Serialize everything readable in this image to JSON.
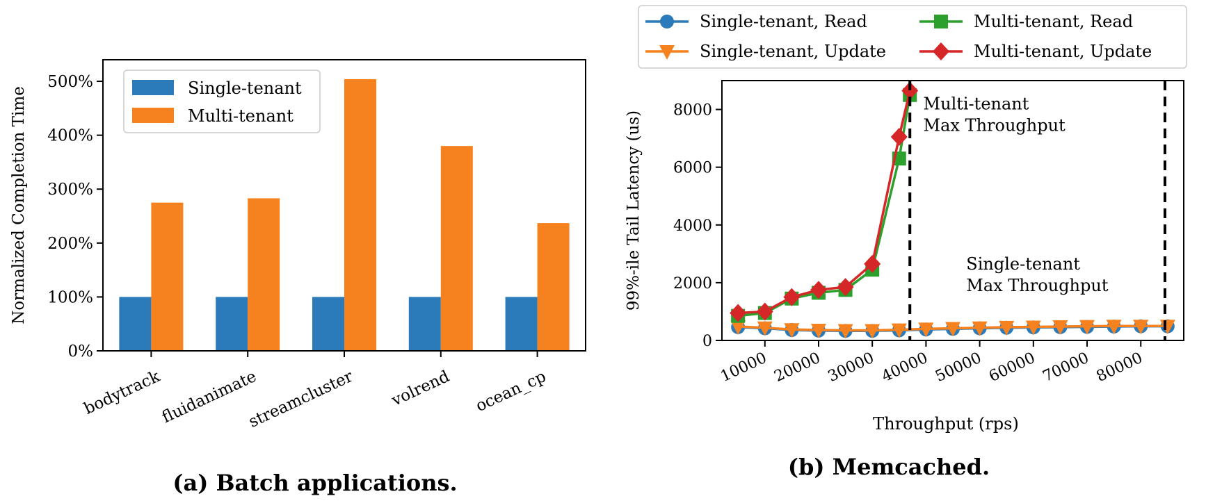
{
  "chart_data": [
    {
      "type": "bar",
      "caption": "(a) Batch applications.",
      "ylabel": "Normalized Completion Time",
      "xlabel": "",
      "categories": [
        "bodytrack",
        "fluidanimate",
        "streamcluster",
        "volrend",
        "ocean_cp"
      ],
      "series": [
        {
          "name": "Single-tenant",
          "values": [
            100,
            100,
            100,
            100,
            100
          ]
        },
        {
          "name": "Multi-tenant",
          "values": [
            275,
            283,
            504,
            380,
            237
          ]
        }
      ],
      "ylim": [
        0,
        540
      ],
      "yticks": [
        0,
        100,
        200,
        300,
        400,
        500
      ],
      "ytick_labels": [
        "0%",
        "100%",
        "200%",
        "300%",
        "400%",
        "500%"
      ],
      "legend_position": "top-left",
      "grid": false,
      "colors": {
        "Single-tenant": "#2b7bba",
        "Multi-tenant": "#f5821f"
      }
    },
    {
      "type": "line",
      "caption": "(b) Memcached.",
      "xlabel": "Throughput (rps)",
      "ylabel": "99%-ile Tail Latency (us)",
      "xlim": [
        2000,
        88000
      ],
      "ylim": [
        0,
        9000
      ],
      "xticks": [
        10000,
        20000,
        30000,
        40000,
        50000,
        60000,
        70000,
        80000
      ],
      "xtick_labels": [
        "10000",
        "20000",
        "30000",
        "40000",
        "50000",
        "60000",
        "70000",
        "80000"
      ],
      "yticks": [
        0,
        2000,
        4000,
        6000,
        8000
      ],
      "ytick_labels": [
        "0",
        "2000",
        "4000",
        "6000",
        "8000"
      ],
      "legend_position": "above plot",
      "grid": false,
      "series": [
        {
          "name": "Single-tenant, Read",
          "color": "#2b7bba",
          "marker": "circle",
          "x": [
            5000,
            10000,
            15000,
            20000,
            25000,
            30000,
            35000,
            40000,
            45000,
            50000,
            55000,
            60000,
            65000,
            70000,
            75000,
            80000,
            85000
          ],
          "y": [
            460,
            420,
            360,
            340,
            330,
            330,
            350,
            380,
            400,
            420,
            440,
            450,
            460,
            470,
            480,
            490,
            490
          ]
        },
        {
          "name": "Single-tenant, Update",
          "color": "#f5821f",
          "marker": "triangle-down",
          "x": [
            5000,
            10000,
            15000,
            20000,
            25000,
            30000,
            35000,
            40000,
            45000,
            50000,
            55000,
            60000,
            65000,
            70000,
            75000,
            80000,
            85000
          ],
          "y": [
            480,
            440,
            380,
            360,
            350,
            350,
            370,
            400,
            420,
            440,
            460,
            470,
            480,
            490,
            500,
            500,
            500
          ]
        },
        {
          "name": "Multi-tenant, Read",
          "color": "#2ca02c",
          "marker": "square",
          "x": [
            5000,
            10000,
            15000,
            20000,
            25000,
            30000,
            35000,
            37000
          ],
          "y": [
            850,
            950,
            1450,
            1650,
            1750,
            2450,
            6300,
            8500
          ]
        },
        {
          "name": "Multi-tenant, Update",
          "color": "#d62728",
          "marker": "diamond",
          "x": [
            5000,
            10000,
            15000,
            20000,
            25000,
            30000,
            35000,
            37000
          ],
          "y": [
            950,
            1000,
            1500,
            1750,
            1850,
            2650,
            7050,
            8650
          ]
        }
      ],
      "vlines": [
        37000,
        84500
      ],
      "annotations": [
        {
          "lines": [
            "Multi-tenant",
            "Max Throughput"
          ],
          "x": 39500,
          "y": 8000
        },
        {
          "lines": [
            "Single-tenant",
            "Max Throughput"
          ],
          "x": 47500,
          "y": 2450
        }
      ]
    }
  ]
}
